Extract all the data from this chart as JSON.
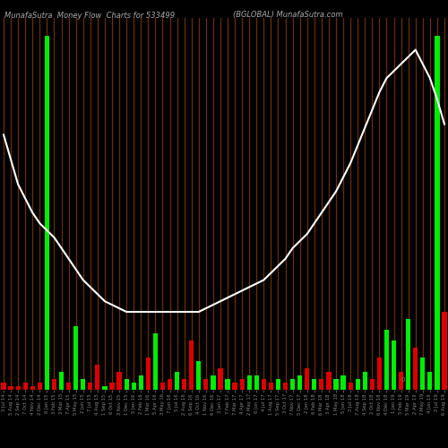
{
  "title_left": "MunafaSutra  Money Flow  Charts for 533499",
  "title_right": "(BGLOBAL) MunafaSutra.com",
  "bg_color": "#000000",
  "bar_color_up": "#00ee00",
  "bar_color_down": "#dd0000",
  "stripe_color": "#6B2F00",
  "line_color": "#ffffff",
  "categories": [
    "3 Jul 14",
    "5 Aug 14",
    "2 Sep 14",
    "7 Oct 14",
    "4 Nov 14",
    "2 Dec 14",
    "6 Jan 15",
    "3 Feb 15",
    "3 Mar 15",
    "7 Apr 15",
    "5 May 15",
    "2 Jun 15",
    "7 Jul 15",
    "4 Aug 15",
    "1 Sep 15",
    "6 Oct 15",
    "3 Nov 15",
    "1 Dec 15",
    "5 Jan 16",
    "2 Feb 16",
    "1 Mar 16",
    "5 Apr 16",
    "3 May 16",
    "7 Jun 16",
    "5 Jul 16",
    "2 Aug 16",
    "6 Sep 16",
    "4 Oct 16",
    "1 Nov 16",
    "6 Dec 16",
    "3 Jan 17",
    "7 Feb 17",
    "7 Mar 17",
    "4 Apr 17",
    "2 May 17",
    "6 Jun 17",
    "4 Jul 17",
    "1 Aug 17",
    "5 Sep 17",
    "3 Oct 17",
    "7 Nov 17",
    "5 Dec 17",
    "2 Jan 18",
    "6 Feb 18",
    "6 Mar 18",
    "3 Apr 18",
    "1 May 18",
    "5 Jun 18",
    "3 Jul 18",
    "7 Aug 18",
    "4 Sep 18",
    "2 Oct 18",
    "6 Nov 18",
    "4 Dec 18",
    "1 Jan 19",
    "5 Feb 19",
    "5 Mar 19",
    "2 Apr 19",
    "7 May 19",
    "4 Jun 19",
    "2 Jul 19",
    "6 Aug 19"
  ],
  "bar_values": [
    2,
    1,
    1,
    2,
    1,
    2,
    100,
    3,
    5,
    2,
    18,
    3,
    2,
    7,
    1,
    2,
    5,
    3,
    2,
    4,
    9,
    16,
    2,
    3,
    5,
    3,
    14,
    8,
    3,
    4,
    6,
    3,
    2,
    3,
    4,
    4,
    3,
    2,
    3,
    2,
    3,
    4,
    6,
    3,
    3,
    5,
    3,
    4,
    2,
    3,
    5,
    3,
    9,
    17,
    14,
    5,
    20,
    12,
    9,
    5,
    100,
    22
  ],
  "bar_colors": [
    "r",
    "r",
    "r",
    "r",
    "r",
    "r",
    "g",
    "r",
    "g",
    "r",
    "g",
    "g",
    "r",
    "r",
    "g",
    "r",
    "r",
    "g",
    "g",
    "g",
    "r",
    "g",
    "r",
    "r",
    "g",
    "r",
    "r",
    "g",
    "r",
    "g",
    "r",
    "g",
    "r",
    "r",
    "g",
    "g",
    "r",
    "r",
    "g",
    "r",
    "g",
    "g",
    "r",
    "g",
    "r",
    "r",
    "g",
    "g",
    "r",
    "g",
    "g",
    "r",
    "r",
    "g",
    "g",
    "r",
    "g",
    "r",
    "g",
    "g",
    "g",
    "r"
  ],
  "line_values": [
    72,
    65,
    58,
    54,
    50,
    47,
    45,
    43,
    40,
    37,
    34,
    31,
    29,
    27,
    25,
    24,
    23,
    22,
    22,
    22,
    22,
    22,
    22,
    22,
    22,
    22,
    22,
    22,
    23,
    24,
    25,
    26,
    27,
    28,
    29,
    30,
    31,
    33,
    35,
    37,
    40,
    42,
    44,
    47,
    50,
    53,
    56,
    60,
    64,
    69,
    74,
    79,
    84,
    88,
    90,
    92,
    94,
    96,
    92,
    88,
    82,
    75
  ],
  "zero_label": "0"
}
